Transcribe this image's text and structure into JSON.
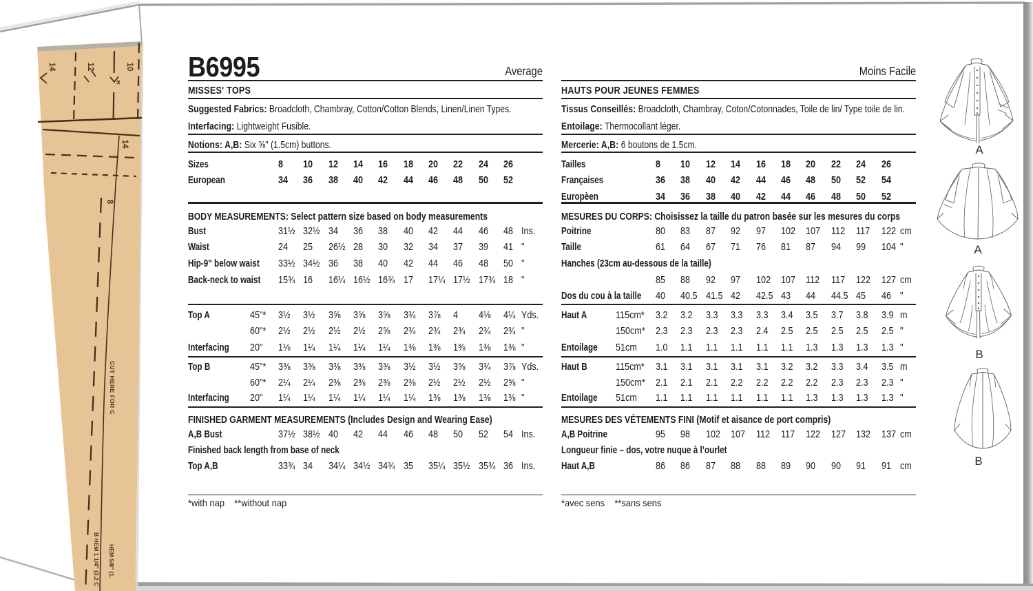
{
  "page": {
    "code": "B6995",
    "difficulty_en": "Average",
    "difficulty_fr": "Moins Facile"
  },
  "colors": {
    "ink": "#1c1c1c",
    "tissue_tan": "#e7c496",
    "tissue_print": "#43311f",
    "shadow_grey": "#9a9a9a"
  },
  "english": {
    "title": "MISSES' TOPS",
    "fabrics_label": "Suggested Fabrics:",
    "fabrics_text": " Broadcloth, Chambray, Cotton/Cotton Blends, Linen/Linen Types.",
    "interfacing_label": "Interfacing:",
    "interfacing_text": " Lightweight Fusible.",
    "notions_label": "Notions: A,B:",
    "notions_text": " Six ⅝\" (1.5cm) buttons.",
    "size_rows": [
      {
        "label": "Sizes",
        "values": [
          "8",
          "10",
          "12",
          "14",
          "16",
          "18",
          "20",
          "22",
          "24",
          "26"
        ],
        "bold": true
      },
      {
        "label": "European",
        "values": [
          "34",
          "36",
          "38",
          "40",
          "42",
          "44",
          "46",
          "48",
          "50",
          "52"
        ],
        "bold": true
      }
    ],
    "body_header": "BODY MEASUREMENTS: Select pattern size based on body measurements",
    "body_rows": [
      {
        "label": "Bust",
        "values": [
          "31½",
          "32½",
          "34",
          "36",
          "38",
          "40",
          "42",
          "44",
          "46",
          "48"
        ],
        "unit": "Ins."
      },
      {
        "label": "Waist",
        "values": [
          "24",
          "25",
          "26½",
          "28",
          "30",
          "32",
          "34",
          "37",
          "39",
          "41"
        ],
        "unit": "\""
      },
      {
        "label": "Hip-9\" below waist",
        "values": [
          "33½",
          "34½",
          "36",
          "38",
          "40",
          "42",
          "44",
          "46",
          "48",
          "50"
        ],
        "unit": "\""
      },
      {
        "label": "Back-neck to waist",
        "values": [
          "15¾",
          "16",
          "16¼",
          "16½",
          "16¾",
          "17",
          "17¼",
          "17½",
          "17¾",
          "18"
        ],
        "unit": "\""
      }
    ],
    "top_a_rows": [
      {
        "label": "Top A",
        "sub": "45\"*",
        "values": [
          "3½",
          "3½",
          "3⅝",
          "3⅝",
          "3⅝",
          "3¾",
          "3⅞",
          "4",
          "4⅛",
          "4¼"
        ],
        "unit": "Yds."
      },
      {
        "label": "",
        "sub": "60\"*",
        "values": [
          "2½",
          "2½",
          "2½",
          "2½",
          "2⅝",
          "2¾",
          "2¾",
          "2¾",
          "2¾",
          "2¾"
        ],
        "unit": "\""
      },
      {
        "label": "Interfacing",
        "sub": "20\"",
        "values": [
          "1⅛",
          "1¼",
          "1¼",
          "1¼",
          "1¼",
          "1⅜",
          "1⅜",
          "1⅜",
          "1⅜",
          "1⅜"
        ],
        "unit": "\""
      }
    ],
    "top_b_rows": [
      {
        "label": "Top B",
        "sub": "45\"*",
        "values": [
          "3⅜",
          "3⅜",
          "3⅜",
          "3⅜",
          "3⅜",
          "3½",
          "3½",
          "3⅝",
          "3¾",
          "3⅞"
        ],
        "unit": "Yds."
      },
      {
        "label": "",
        "sub": "60\"*",
        "values": [
          "2¼",
          "2¼",
          "2⅜",
          "2⅜",
          "2⅜",
          "2⅜",
          "2½",
          "2½",
          "2½",
          "2⅝"
        ],
        "unit": "\""
      },
      {
        "label": "Interfacing",
        "sub": "20\"",
        "values": [
          "1¼",
          "1¼",
          "1¼",
          "1¼",
          "1¼",
          "1¼",
          "1⅜",
          "1⅜",
          "1⅜",
          "1⅜"
        ],
        "unit": "\""
      }
    ],
    "finished_header": "FINISHED GARMENT MEASUREMENTS (Includes Design and Wearing Ease)",
    "finished_rows": [
      {
        "label": "A,B Bust",
        "values": [
          "37½",
          "38½",
          "40",
          "42",
          "44",
          "46",
          "48",
          "50",
          "52",
          "54"
        ],
        "unit": "Ins."
      },
      {
        "label": "Finished back length from base of neck",
        "type": "header"
      },
      {
        "label": "Top A,B",
        "values": [
          "33¾",
          "34",
          "34¼",
          "34½",
          "34¾",
          "35",
          "35¼",
          "35½",
          "35¾",
          "36"
        ],
        "unit": "Ins."
      }
    ],
    "footnote": "*with nap    **without nap"
  },
  "french": {
    "title": "HAUTS POUR JEUNES FEMMES",
    "fabrics_label": "Tissus Conseillés:",
    "fabrics_text": " Broadcloth, Chambray, Coton/Cotonnades, Toile de lin/ Type toile de lin.",
    "interfacing_label": "Entoilage:",
    "interfacing_text": " Thermocollant léger.",
    "notions_label": "Mercerie: A,B:",
    "notions_text": " 6 boutons de 1.5cm.",
    "size_rows": [
      {
        "label": "Tailles",
        "values": [
          "8",
          "10",
          "12",
          "14",
          "16",
          "18",
          "20",
          "22",
          "24",
          "26"
        ],
        "bold": true
      },
      {
        "label": "Françaises",
        "values": [
          "36",
          "38",
          "40",
          "42",
          "44",
          "46",
          "48",
          "50",
          "52",
          "54"
        ],
        "bold": true
      },
      {
        "label": "Europèen",
        "values": [
          "34",
          "36",
          "38",
          "40",
          "42",
          "44",
          "46",
          "48",
          "50",
          "52"
        ],
        "bold": true
      }
    ],
    "body_header": "MESURES DU CORPS: Choisissez la taille du patron basée sur les mesures du corps",
    "body_rows": [
      {
        "label": "Poitrine",
        "values": [
          "80",
          "83",
          "87",
          "92",
          "97",
          "102",
          "107",
          "112",
          "117",
          "122"
        ],
        "unit": "cm"
      },
      {
        "label": "Taille",
        "values": [
          "61",
          "64",
          "67",
          "71",
          "76",
          "81",
          "87",
          "94",
          "99",
          "104"
        ],
        "unit": "\""
      },
      {
        "label": "Hanches (23cm au-dessous de la taille)",
        "type": "header"
      },
      {
        "label": "",
        "values": [
          "85",
          "88",
          "92",
          "97",
          "102",
          "107",
          "112",
          "117",
          "122",
          "127"
        ],
        "unit": "cm"
      },
      {
        "label": "Dos du cou à la taille",
        "values": [
          "40",
          "40.5",
          "41.5",
          "42",
          "42.5",
          "43",
          "44",
          "44.5",
          "45",
          "46"
        ],
        "unit": "\""
      }
    ],
    "top_a_rows": [
      {
        "label": "Haut A",
        "sub": "115cm*",
        "values": [
          "3.2",
          "3.2",
          "3.3",
          "3.3",
          "3.3",
          "3.4",
          "3.5",
          "3.7",
          "3.8",
          "3.9"
        ],
        "unit": "m"
      },
      {
        "label": "",
        "sub": "150cm*",
        "values": [
          "2.3",
          "2.3",
          "2.3",
          "2.3",
          "2.4",
          "2.5",
          "2.5",
          "2.5",
          "2.5",
          "2.5"
        ],
        "unit": "\""
      },
      {
        "label": "Entoilage",
        "sub": "51cm",
        "values": [
          "1.0",
          "1.1",
          "1.1",
          "1.1",
          "1.1",
          "1.1",
          "1.3",
          "1.3",
          "1.3",
          "1.3"
        ],
        "unit": "\""
      }
    ],
    "top_b_rows": [
      {
        "label": "Haut B",
        "sub": "115cm*",
        "values": [
          "3.1",
          "3.1",
          "3.1",
          "3.1",
          "3.1",
          "3.2",
          "3.2",
          "3.3",
          "3.4",
          "3.5"
        ],
        "unit": "m"
      },
      {
        "label": "",
        "sub": "150cm*",
        "values": [
          "2.1",
          "2.1",
          "2.1",
          "2.2",
          "2.2",
          "2.2",
          "2.2",
          "2.3",
          "2.3",
          "2.3"
        ],
        "unit": "\""
      },
      {
        "label": "Entoilage",
        "sub": "51cm",
        "values": [
          "1.1",
          "1.1",
          "1.1",
          "1.1",
          "1.1",
          "1.1",
          "1.3",
          "1.3",
          "1.3",
          "1.3"
        ],
        "unit": "\""
      }
    ],
    "finished_header": "MESURES DES VÉTEMENTS FINI (Motif et aisance de port compris)",
    "finished_rows": [
      {
        "label": "A,B Poitrine",
        "values": [
          "95",
          "98",
          "102",
          "107",
          "112",
          "117",
          "122",
          "127",
          "132",
          "137"
        ],
        "unit": "cm"
      },
      {
        "label": "Longueur finie – dos, votre nuque à l’ourlet",
        "type": "header"
      },
      {
        "label": "Haut A,B",
        "values": [
          "86",
          "86",
          "87",
          "88",
          "88",
          "89",
          "90",
          "90",
          "91",
          "91"
        ],
        "unit": "cm"
      }
    ],
    "footnote": "*avec sens    **sans sens"
  },
  "tissue": {
    "size_14": "14",
    "size_12": "12",
    "size_10": "10",
    "size_14b": "14",
    "size_8": "8",
    "cut_here": "CUT HERE FOR C",
    "b_hem": "B HEM 1 1/4\" (3.2 C",
    "hem": "HEM 5/8\" (1."
  },
  "views": [
    {
      "label": "A"
    },
    {
      "label": "A"
    },
    {
      "label": "B"
    },
    {
      "label": "B"
    }
  ]
}
